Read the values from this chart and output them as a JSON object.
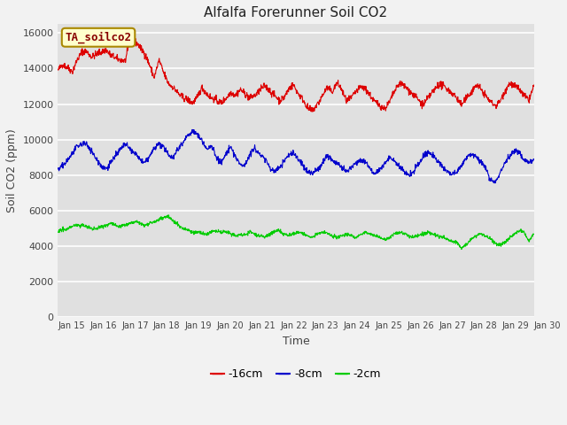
{
  "title": "Alfalfa Forerunner Soil CO2",
  "xlabel": "Time",
  "ylabel": "Soil CO2 (ppm)",
  "ylim": [
    0,
    16500
  ],
  "yticks": [
    0,
    2000,
    4000,
    6000,
    8000,
    10000,
    12000,
    14000,
    16000
  ],
  "fig_bg_color": "#f2f2f2",
  "plot_bg_color": "#e0e0e0",
  "series_labels": [
    "-16cm",
    "-8cm",
    "-2cm"
  ],
  "series_colors": [
    "#dd0000",
    "#0000cc",
    "#00cc00"
  ],
  "annotation_text": "TA_soilco2",
  "annotation_fg": "#880000",
  "annotation_bg": "#ffffcc",
  "annotation_edge": "#aa8800",
  "xtick_labels": [
    "Jan 15",
    "Jan 16",
    "Jan 17",
    "Jan 18",
    "Jan 19",
    "Jan 20",
    "Jan 21",
    "Jan 22",
    "Jan 23",
    "Jan 24",
    "Jan 25",
    "Jan 26",
    "Jan 27",
    "Jan 28",
    "Jan 29",
    "Jan 30"
  ]
}
